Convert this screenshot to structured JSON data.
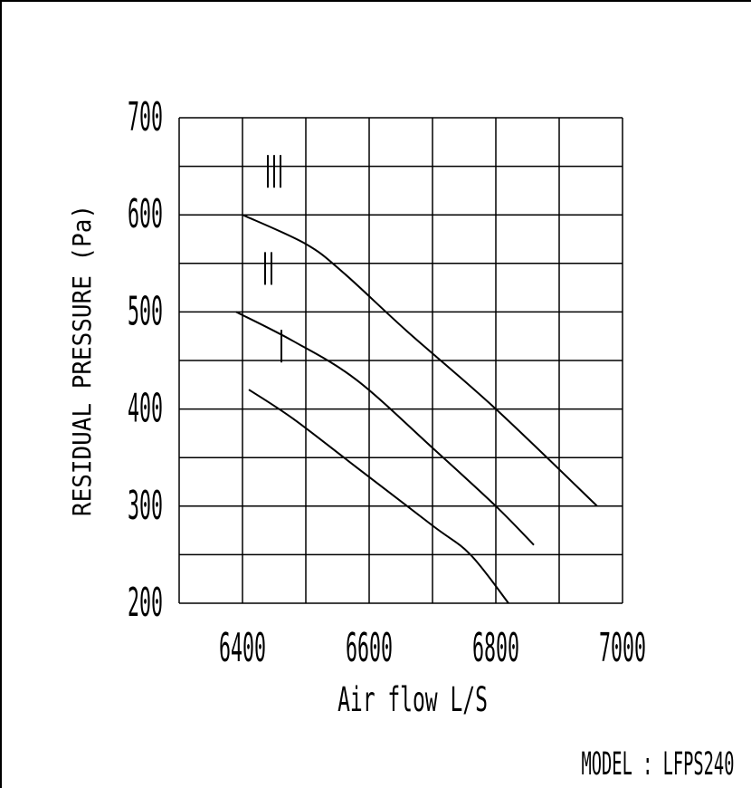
{
  "chart_data": {
    "type": "line",
    "xlabel": "Air flow L/S",
    "ylabel": "RESIDUAL PRESSURE (Pa)",
    "xlim": [
      6300,
      7000
    ],
    "ylim": [
      200,
      700
    ],
    "x_ticks": [
      6400,
      6600,
      6800,
      7000
    ],
    "y_ticks": [
      200,
      300,
      400,
      500,
      600,
      700
    ],
    "grid": true,
    "series": [
      {
        "name": "III",
        "x": [
          6400,
          6500,
          6560,
          6660,
          6800,
          6960
        ],
        "y": [
          600,
          570,
          540,
          480,
          400,
          300
        ]
      },
      {
        "name": "II",
        "x": [
          6390,
          6480,
          6580,
          6700,
          6800,
          6860
        ],
        "y": [
          500,
          470,
          430,
          360,
          300,
          260
        ]
      },
      {
        "name": "I",
        "x": [
          6410,
          6480,
          6580,
          6700,
          6760,
          6820
        ],
        "y": [
          420,
          390,
          340,
          280,
          250,
          200
        ]
      }
    ],
    "model_label": "MODEL : LFPS240"
  }
}
